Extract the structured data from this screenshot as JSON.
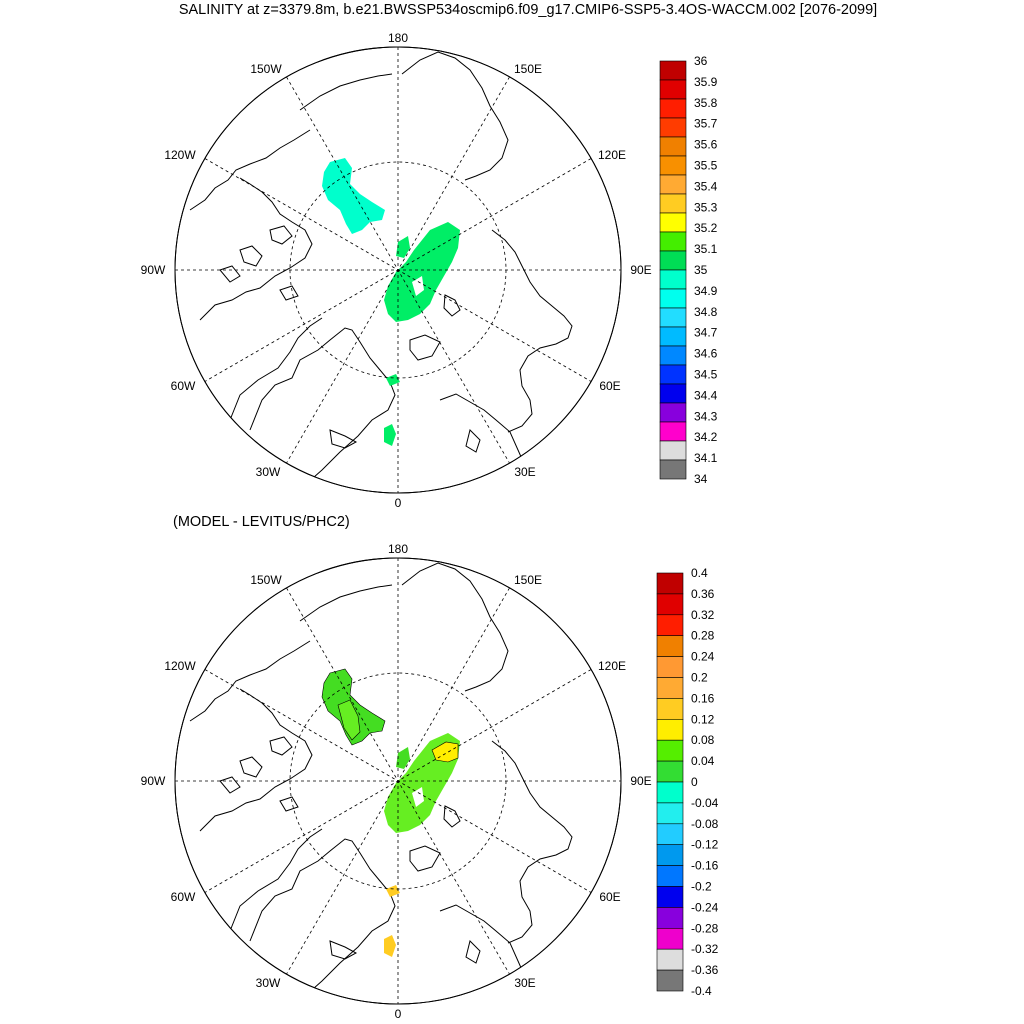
{
  "title": "SALINITY at z=3379.8m, b.e21.BWSSP534oscmip6.f09_g17.CMIP6-SSP5-3.4OS-WACCM.002 [2076-2099]",
  "subtitle": "(MODEL - LEVITUS/PHC2)",
  "longitude_labels": {
    "lon180": "180",
    "lon150w": "150W",
    "lon150e": "150E",
    "lon120w": "120W",
    "lon120e": "120E",
    "lon90w": "90W",
    "lon90e": "90E",
    "lon60w": "60W",
    "lon60e": "60E",
    "lon30w": "30W",
    "lon30e": "30E",
    "lon0": "0"
  },
  "colorbar_top": {
    "labels": [
      "36",
      "35.9",
      "35.8",
      "35.7",
      "35.6",
      "35.5",
      "35.4",
      "35.3",
      "35.2",
      "35.1",
      "35",
      "34.9",
      "34.8",
      "34.7",
      "34.6",
      "34.5",
      "34.4",
      "34.3",
      "34.2",
      "34.1",
      "34"
    ],
    "colors": [
      "#c00000",
      "#e00000",
      "#ff1e00",
      "#ff3c00",
      "#f08000",
      "#f89000",
      "#ffaa33",
      "#ffcc22",
      "#ffff00",
      "#44ee00",
      "#00dd55",
      "#00ffcc",
      "#00ffee",
      "#22ddff",
      "#00bbff",
      "#0088ff",
      "#0033ff",
      "#0000ee",
      "#8800dd",
      "#ff00cc",
      "#dddddd",
      "#777777"
    ]
  },
  "colorbar_bottom": {
    "labels": [
      "0.4",
      "0.36",
      "0.32",
      "0.28",
      "0.24",
      "0.2",
      "0.16",
      "0.12",
      "0.08",
      "0.04",
      "0",
      "-0.04",
      "-0.08",
      "-0.12",
      "-0.16",
      "-0.2",
      "-0.24",
      "-0.28",
      "-0.32",
      "-0.36",
      "-0.4"
    ],
    "colors": [
      "#c00000",
      "#e00000",
      "#ff1e00",
      "#f08000",
      "#ff9933",
      "#ffaa33",
      "#ffcc22",
      "#ffee00",
      "#55ee00",
      "#33dd33",
      "#00ffcc",
      "#22eeee",
      "#22ccff",
      "#0099ee",
      "#0077ff",
      "#0000ee",
      "#8800dd",
      "#ee00cc",
      "#dddddd",
      "#777777"
    ]
  },
  "map_top_fills": [
    "#00ffcc",
    "#00ee66"
  ],
  "map_bottom_fills": [
    "#44dd22",
    "#66ee22",
    "#ffee00",
    "#ffcc22"
  ]
}
